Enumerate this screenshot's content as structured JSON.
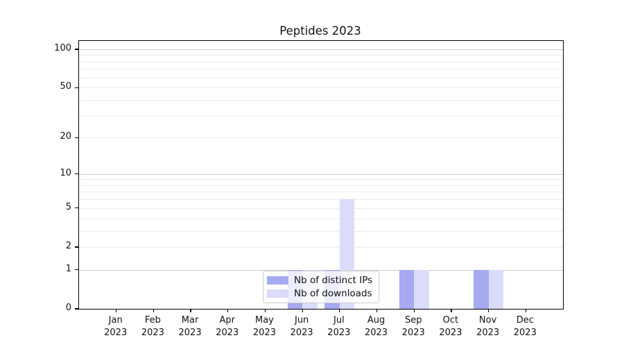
{
  "chart_data": {
    "type": "bar",
    "title": "Peptides 2023",
    "categories": [
      "Jan 2023",
      "Feb 2023",
      "Mar 2023",
      "Apr 2023",
      "May 2023",
      "Jun 2023",
      "Jul 2023",
      "Aug 2023",
      "Sep 2023",
      "Oct 2023",
      "Nov 2023",
      "Dec 2023"
    ],
    "series": [
      {
        "name": "Nb of distinct IPs",
        "color": "#a7a9f1",
        "values": [
          0,
          0,
          0,
          0,
          0,
          1,
          1,
          0,
          1,
          0,
          1,
          0
        ]
      },
      {
        "name": "Nb of downloads",
        "color": "#dbdcfa",
        "values": [
          0,
          0,
          0,
          0,
          0,
          1,
          6,
          0,
          1,
          0,
          1,
          0
        ]
      }
    ],
    "yticks": [
      0,
      1,
      2,
      5,
      10,
      20,
      50,
      100
    ],
    "major_gridlines": [
      1,
      10,
      100
    ],
    "minor_gridlines": [
      2,
      3,
      4,
      5,
      6,
      7,
      8,
      9,
      20,
      30,
      40,
      50,
      60,
      70,
      80,
      90
    ],
    "scale": "log1p",
    "ylim": [
      0,
      116
    ],
    "grid": true,
    "legend_position": "lower center-left, inside plot",
    "xlabel": "",
    "ylabel": ""
  },
  "style": {
    "axis_color": "#000000",
    "text_color": "#111111",
    "grid_major_color": "#cccccc",
    "grid_minor_color": "#ececec",
    "legend_border_color": "#cccccc"
  }
}
